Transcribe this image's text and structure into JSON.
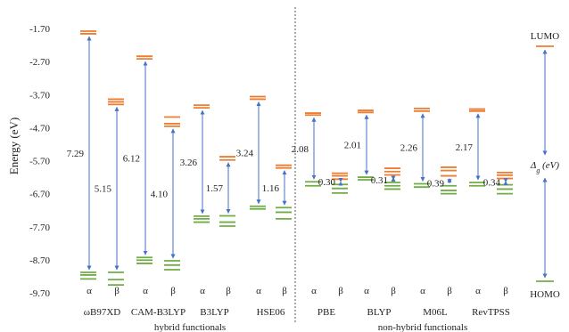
{
  "chart_data": {
    "type": "energy-level diagram",
    "title": "",
    "ylabel": "Energy (eV)",
    "ylim": [
      -9.7,
      -1.7
    ],
    "yticks": [
      "-1.70",
      "-2.70",
      "-3.70",
      "-4.70",
      "-5.70",
      "-6.70",
      "-7.70",
      "-8.70",
      "-9.70"
    ],
    "colors": {
      "lumo": "#ed7d31",
      "homo": "#70ad47",
      "arrow": "#4472c4"
    },
    "functionals": [
      {
        "name": "ωB97XD",
        "type": "hybrid",
        "spins": [
          {
            "spin": "α",
            "lumo": [
              -1.78,
              -1.86
            ],
            "homo": [
              -9.08,
              -9.16,
              -9.28
            ],
            "gap": "7.29"
          },
          {
            "spin": "β",
            "lumo": [
              -3.84,
              -3.92,
              -4.0
            ],
            "homo": [
              -9.08,
              -9.3,
              -9.46
            ],
            "gap": "5.15"
          }
        ]
      },
      {
        "name": "CAM-B3LYP",
        "type": "hybrid",
        "spins": [
          {
            "spin": "α",
            "lumo": [
              -2.54,
              -2.62
            ],
            "homo": [
              -8.63,
              -8.71,
              -8.81
            ],
            "gap": "6.12"
          },
          {
            "spin": "β",
            "lumo": [
              -4.38,
              -4.58,
              -4.66
            ],
            "homo": [
              -8.73,
              -8.86,
              -9.0
            ],
            "gap": "4.10"
          }
        ]
      },
      {
        "name": "B3LYP",
        "type": "hybrid",
        "spins": [
          {
            "spin": "α",
            "lumo": [
              -4.02,
              -4.1
            ],
            "homo": [
              -7.38,
              -7.46,
              -7.56
            ],
            "gap": "3.26"
          },
          {
            "spin": "β",
            "lumo": [
              -5.58,
              -5.68
            ],
            "homo": [
              -7.37,
              -7.56,
              -7.68
            ],
            "gap": "1.57"
          }
        ]
      },
      {
        "name": "HSE06",
        "type": "hybrid",
        "spins": [
          {
            "spin": "α",
            "lumo": [
              -3.76,
              -3.84
            ],
            "homo": [
              -7.08,
              -7.16
            ],
            "gap": "3.24"
          },
          {
            "spin": "β",
            "lumo": [
              -5.84,
              -5.92
            ],
            "homo": [
              -7.12,
              -7.26,
              -7.46
            ],
            "gap": "1.16"
          }
        ]
      },
      {
        "name": "PBE",
        "type": "non-hybrid",
        "spins": [
          {
            "spin": "α",
            "lumo": [
              -4.26,
              -4.32
            ],
            "homo": [
              -6.34,
              -6.46
            ],
            "gap": "2.08"
          },
          {
            "spin": "β",
            "lumo": [
              -6.08,
              -6.16,
              -6.26
            ],
            "homo": [
              -6.42,
              -6.54,
              -6.68
            ],
            "gap": "0.30"
          }
        ]
      },
      {
        "name": "BLYP",
        "type": "non-hybrid",
        "spins": [
          {
            "spin": "α",
            "lumo": [
              -4.18,
              -4.24
            ],
            "homo": [
              -6.2,
              -6.28
            ],
            "gap": "2.01"
          },
          {
            "spin": "β",
            "lumo": [
              -5.93,
              -6.03,
              -6.13
            ],
            "homo": [
              -6.36,
              -6.46,
              -6.56
            ],
            "gap": "0.31"
          }
        ]
      },
      {
        "name": "M06L",
        "type": "non-hybrid",
        "spins": [
          {
            "spin": "α",
            "lumo": [
              -4.12,
              -4.2
            ],
            "homo": [
              -6.4,
              -6.5
            ],
            "gap": "2.26"
          },
          {
            "spin": "β",
            "lumo": [
              -5.9,
              -6.0,
              -6.16
            ],
            "homo": [
              -6.46,
              -6.6,
              -6.7
            ],
            "gap": "0.39"
          }
        ]
      },
      {
        "name": "RevTPSS",
        "type": "non-hybrid",
        "spins": [
          {
            "spin": "α",
            "lumo": [
              -4.14,
              -4.2
            ],
            "homo": [
              -6.36,
              -6.46
            ],
            "gap": "2.17"
          },
          {
            "spin": "β",
            "lumo": [
              -6.06,
              -6.14,
              -6.24
            ],
            "homo": [
              -6.43,
              -6.56,
              -6.7
            ],
            "gap": "0.34"
          }
        ]
      }
    ],
    "group_labels": {
      "hybrid": "hybrid  functionals",
      "non_hybrid": "non-hybrid  functionals"
    },
    "legend": {
      "lumo_label": "LUMO",
      "homo_label": "HOMO",
      "gap_label": "Δg (eV)"
    }
  }
}
